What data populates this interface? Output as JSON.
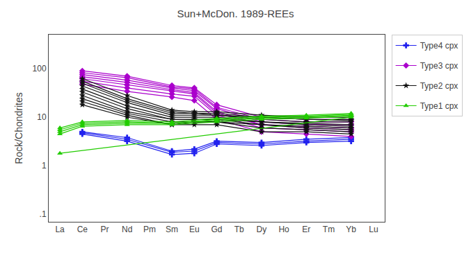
{
  "chart_data": {
    "type": "line",
    "title": "Sun+McDon. 1989-REEs",
    "ylabel": "Rock/Chondrites",
    "categories": [
      "La",
      "Ce",
      "Pr",
      "Nd",
      "Pm",
      "Sm",
      "Eu",
      "Gd",
      "Tb",
      "Dy",
      "Ho",
      "Er",
      "Tm",
      "Yb",
      "Lu"
    ],
    "log": "y",
    "ylim": [
      0.07,
      500
    ],
    "yticks": [
      {
        "value": 0.1,
        "label": ".1"
      },
      1,
      10,
      100
    ],
    "grid": false,
    "legend": "right",
    "series": [
      {
        "name": "Type4 cpx",
        "color": "#2222ee",
        "marker": "cross",
        "values": [
          null,
          5.0,
          null,
          3.8,
          null,
          2.0,
          2.2,
          3.2,
          null,
          3.0,
          null,
          3.5,
          null,
          3.8,
          null
        ]
      },
      {
        "name": "Type4 cpx",
        "color": "#2222ee",
        "marker": "cross",
        "values": [
          null,
          4.8,
          null,
          3.5,
          null,
          1.9,
          2.0,
          3.0,
          null,
          2.8,
          null,
          3.2,
          null,
          3.5,
          null
        ]
      },
      {
        "name": "Type4 cpx",
        "color": "#2222ee",
        "marker": "cross",
        "values": [
          null,
          4.5,
          null,
          3.2,
          null,
          1.7,
          1.8,
          2.8,
          null,
          2.6,
          null,
          3.0,
          null,
          3.2,
          null
        ]
      },
      {
        "name": "Type3 cpx",
        "color": "#aa00cc",
        "marker": "diamond",
        "values": [
          null,
          90,
          null,
          70,
          null,
          45,
          40,
          18,
          null,
          10,
          null,
          9,
          null,
          9,
          null
        ]
      },
      {
        "name": "Type3 cpx",
        "color": "#aa00cc",
        "marker": "diamond",
        "values": [
          null,
          82,
          null,
          65,
          null,
          42,
          38,
          16,
          null,
          9,
          null,
          8,
          null,
          8,
          null
        ]
      },
      {
        "name": "Type3 cpx",
        "color": "#aa00cc",
        "marker": "diamond",
        "values": [
          null,
          75,
          null,
          58,
          null,
          40,
          35,
          15,
          null,
          8,
          null,
          7,
          null,
          7,
          null
        ]
      },
      {
        "name": "Type3 cpx",
        "color": "#aa00cc",
        "marker": "diamond",
        "values": [
          null,
          68,
          null,
          52,
          null,
          37,
          32,
          13,
          null,
          7,
          null,
          6.5,
          null,
          6,
          null
        ]
      },
      {
        "name": "Type3 cpx",
        "color": "#aa00cc",
        "marker": "diamond",
        "values": [
          null,
          62,
          null,
          46,
          null,
          34,
          30,
          12,
          null,
          7,
          null,
          6,
          null,
          5.5,
          null
        ]
      },
      {
        "name": "Type3 cpx",
        "color": "#aa00cc",
        "marker": "diamond",
        "values": [
          null,
          55,
          null,
          40,
          null,
          30,
          27,
          11,
          null,
          6,
          null,
          5.5,
          null,
          5,
          null
        ]
      },
      {
        "name": "Type3 cpx",
        "color": "#aa00cc",
        "marker": "diamond",
        "values": [
          null,
          48,
          null,
          34,
          null,
          26,
          22,
          9,
          null,
          5,
          null,
          4.5,
          null,
          4,
          null
        ]
      },
      {
        "name": "Type2 cpx",
        "color": "#111111",
        "marker": "star",
        "values": [
          null,
          62,
          null,
          28,
          null,
          14,
          13,
          13,
          null,
          11,
          null,
          10,
          null,
          10,
          null
        ]
      },
      {
        "name": "Type2 cpx",
        "color": "#111111",
        "marker": "star",
        "values": [
          null,
          55,
          null,
          24,
          null,
          13,
          12,
          12,
          null,
          10,
          null,
          9,
          null,
          9,
          null
        ]
      },
      {
        "name": "Type2 cpx",
        "color": "#111111",
        "marker": "star",
        "values": [
          null,
          50,
          null,
          22,
          null,
          12,
          12,
          11,
          null,
          10,
          null,
          9,
          null,
          8.5,
          null
        ]
      },
      {
        "name": "Type2 cpx",
        "color": "#111111",
        "marker": "star",
        "values": [
          null,
          44,
          null,
          20,
          null,
          11,
          11,
          11,
          null,
          9,
          null,
          8,
          null,
          8,
          null
        ]
      },
      {
        "name": "Type2 cpx",
        "color": "#111111",
        "marker": "star",
        "values": [
          null,
          38,
          null,
          17,
          null,
          10,
          10,
          10,
          null,
          8,
          null,
          7.5,
          null,
          7,
          null
        ]
      },
      {
        "name": "Type2 cpx",
        "color": "#111111",
        "marker": "star",
        "values": [
          null,
          33,
          null,
          15,
          null,
          9,
          9,
          9,
          null,
          8,
          null,
          7,
          null,
          6.5,
          null
        ]
      },
      {
        "name": "Type2 cpx",
        "color": "#111111",
        "marker": "star",
        "values": [
          null,
          28,
          null,
          13,
          null,
          9,
          9,
          9,
          null,
          7,
          null,
          6.5,
          null,
          6,
          null
        ]
      },
      {
        "name": "Type2 cpx",
        "color": "#111111",
        "marker": "star",
        "values": [
          null,
          24,
          null,
          12,
          null,
          8,
          8,
          8,
          null,
          7,
          null,
          6,
          null,
          5.5,
          null
        ]
      },
      {
        "name": "Type2 cpx",
        "color": "#111111",
        "marker": "star",
        "values": [
          null,
          21,
          null,
          11,
          null,
          7,
          8,
          8,
          null,
          6,
          null,
          5.5,
          null,
          5,
          null
        ]
      },
      {
        "name": "Type2 cpx",
        "color": "#111111",
        "marker": "star",
        "values": [
          null,
          18,
          null,
          10,
          null,
          7,
          7,
          7,
          null,
          5,
          null,
          5,
          null,
          4.5,
          null
        ]
      },
      {
        "name": "Type1 cpx",
        "color": "#22cc00",
        "marker": "triangle-up",
        "values": [
          6.0,
          8.0,
          null,
          8.5,
          null,
          8.0,
          null,
          9.5,
          null,
          10.5,
          null,
          11.0,
          null,
          12.0,
          null
        ]
      },
      {
        "name": "Type1 cpx",
        "color": "#22cc00",
        "marker": "triangle-up",
        "values": [
          5.5,
          7.5,
          null,
          8.0,
          null,
          7.5,
          null,
          9.0,
          null,
          10.0,
          null,
          10.5,
          null,
          11.5,
          null
        ]
      },
      {
        "name": "Type1 cpx",
        "color": "#22cc00",
        "marker": "triangle-up",
        "values": [
          5.0,
          7.0,
          null,
          7.5,
          null,
          7.5,
          null,
          8.5,
          null,
          9.5,
          null,
          10.0,
          null,
          11.0,
          null
        ]
      },
      {
        "name": "Type1 cpx",
        "color": "#22cc00",
        "marker": "triangle-up",
        "values": [
          4.5,
          6.5,
          null,
          7.0,
          null,
          7.0,
          null,
          8.0,
          null,
          9.0,
          null,
          9.5,
          null,
          10.5,
          null
        ]
      },
      {
        "name": "Type1 cpx",
        "color": "#22cc00",
        "marker": "triangle-up",
        "values": [
          1.8,
          null,
          null,
          null,
          null,
          null,
          null,
          null,
          null,
          null,
          null,
          null,
          null,
          10.0,
          null
        ]
      }
    ]
  }
}
